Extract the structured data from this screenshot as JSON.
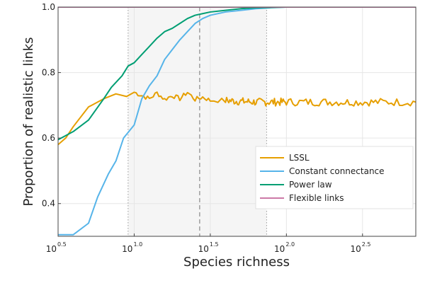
{
  "chart_data": {
    "type": "line",
    "title": "",
    "xlabel": "Species richness",
    "ylabel": "Proportion of realistic links",
    "x_scale": "log10",
    "x_range_log10": [
      0.5,
      2.85
    ],
    "ylim": [
      0.3,
      1.0
    ],
    "x_ticks": [
      {
        "base": "10",
        "exp": "0.5",
        "log10": 0.5
      },
      {
        "base": "10",
        "exp": "1.0",
        "log10": 1.0
      },
      {
        "base": "10",
        "exp": "1.5",
        "log10": 1.5
      },
      {
        "base": "10",
        "exp": "2.0",
        "log10": 2.0
      },
      {
        "base": "10",
        "exp": "2.5",
        "log10": 2.5
      }
    ],
    "y_ticks": [
      "0.4",
      "0.6",
      "0.8",
      "1.0"
    ],
    "y_tick_values": [
      0.4,
      0.6,
      0.8,
      1.0
    ],
    "grid": true,
    "shaded_region_log10": [
      0.96,
      1.87
    ],
    "dotted_vlines_log10": [
      0.96,
      1.87
    ],
    "dashed_vline_log10": 1.43,
    "legend_position": "lower-right",
    "series": [
      {
        "name": "LSSL",
        "color": "#E69F00",
        "points_log10x": [
          [
            0.5,
            0.58
          ],
          [
            0.55,
            0.6
          ],
          [
            0.6,
            0.635
          ],
          [
            0.7,
            0.695
          ],
          [
            0.8,
            0.72
          ],
          [
            0.88,
            0.735
          ],
          [
            0.95,
            0.727
          ],
          [
            1.0,
            0.74
          ],
          [
            1.05,
            0.73
          ],
          [
            1.1,
            0.72
          ],
          [
            1.15,
            0.738
          ],
          [
            1.2,
            0.718
          ],
          [
            1.25,
            0.73
          ],
          [
            1.3,
            0.72
          ],
          [
            1.35,
            0.74
          ],
          [
            1.4,
            0.718
          ],
          [
            1.45,
            0.725
          ],
          [
            1.5,
            0.715
          ],
          [
            1.6,
            0.715
          ],
          [
            1.7,
            0.712
          ],
          [
            1.8,
            0.71
          ],
          [
            1.9,
            0.71
          ],
          [
            2.0,
            0.71
          ],
          [
            2.2,
            0.71
          ],
          [
            2.4,
            0.71
          ],
          [
            2.6,
            0.71
          ],
          [
            2.85,
            0.71
          ]
        ],
        "noise_amplitude": 0.012
      },
      {
        "name": "Constant connectance",
        "color": "#56B4E9",
        "points_log10x": [
          [
            0.5,
            0.305
          ],
          [
            0.6,
            0.305
          ],
          [
            0.7,
            0.34
          ],
          [
            0.76,
            0.42
          ],
          [
            0.83,
            0.49
          ],
          [
            0.88,
            0.53
          ],
          [
            0.93,
            0.6
          ],
          [
            1.0,
            0.64
          ],
          [
            1.05,
            0.72
          ],
          [
            1.1,
            0.76
          ],
          [
            1.15,
            0.79
          ],
          [
            1.2,
            0.84
          ],
          [
            1.25,
            0.87
          ],
          [
            1.3,
            0.9
          ],
          [
            1.35,
            0.925
          ],
          [
            1.4,
            0.95
          ],
          [
            1.45,
            0.965
          ],
          [
            1.5,
            0.975
          ],
          [
            1.6,
            0.985
          ],
          [
            1.7,
            0.99
          ],
          [
            1.8,
            0.995
          ],
          [
            1.9,
            0.998
          ],
          [
            2.0,
            1.0
          ],
          [
            2.3,
            1.0
          ],
          [
            2.85,
            1.0
          ]
        ]
      },
      {
        "name": "Power law",
        "color": "#009E73",
        "points_log10x": [
          [
            0.5,
            0.595
          ],
          [
            0.6,
            0.62
          ],
          [
            0.7,
            0.655
          ],
          [
            0.8,
            0.72
          ],
          [
            0.85,
            0.755
          ],
          [
            0.92,
            0.79
          ],
          [
            0.96,
            0.82
          ],
          [
            1.0,
            0.83
          ],
          [
            1.05,
            0.855
          ],
          [
            1.1,
            0.88
          ],
          [
            1.15,
            0.905
          ],
          [
            1.2,
            0.925
          ],
          [
            1.25,
            0.935
          ],
          [
            1.3,
            0.95
          ],
          [
            1.35,
            0.965
          ],
          [
            1.4,
            0.975
          ],
          [
            1.45,
            0.98
          ],
          [
            1.5,
            0.985
          ],
          [
            1.6,
            0.99
          ],
          [
            1.7,
            0.995
          ],
          [
            1.8,
            0.998
          ],
          [
            2.0,
            1.0
          ],
          [
            2.3,
            1.0
          ],
          [
            2.85,
            1.0
          ]
        ]
      },
      {
        "name": "Flexible links",
        "color": "#CC79A7",
        "points_log10x": [
          [
            0.5,
            1.0
          ],
          [
            2.85,
            1.0
          ]
        ]
      }
    ]
  }
}
